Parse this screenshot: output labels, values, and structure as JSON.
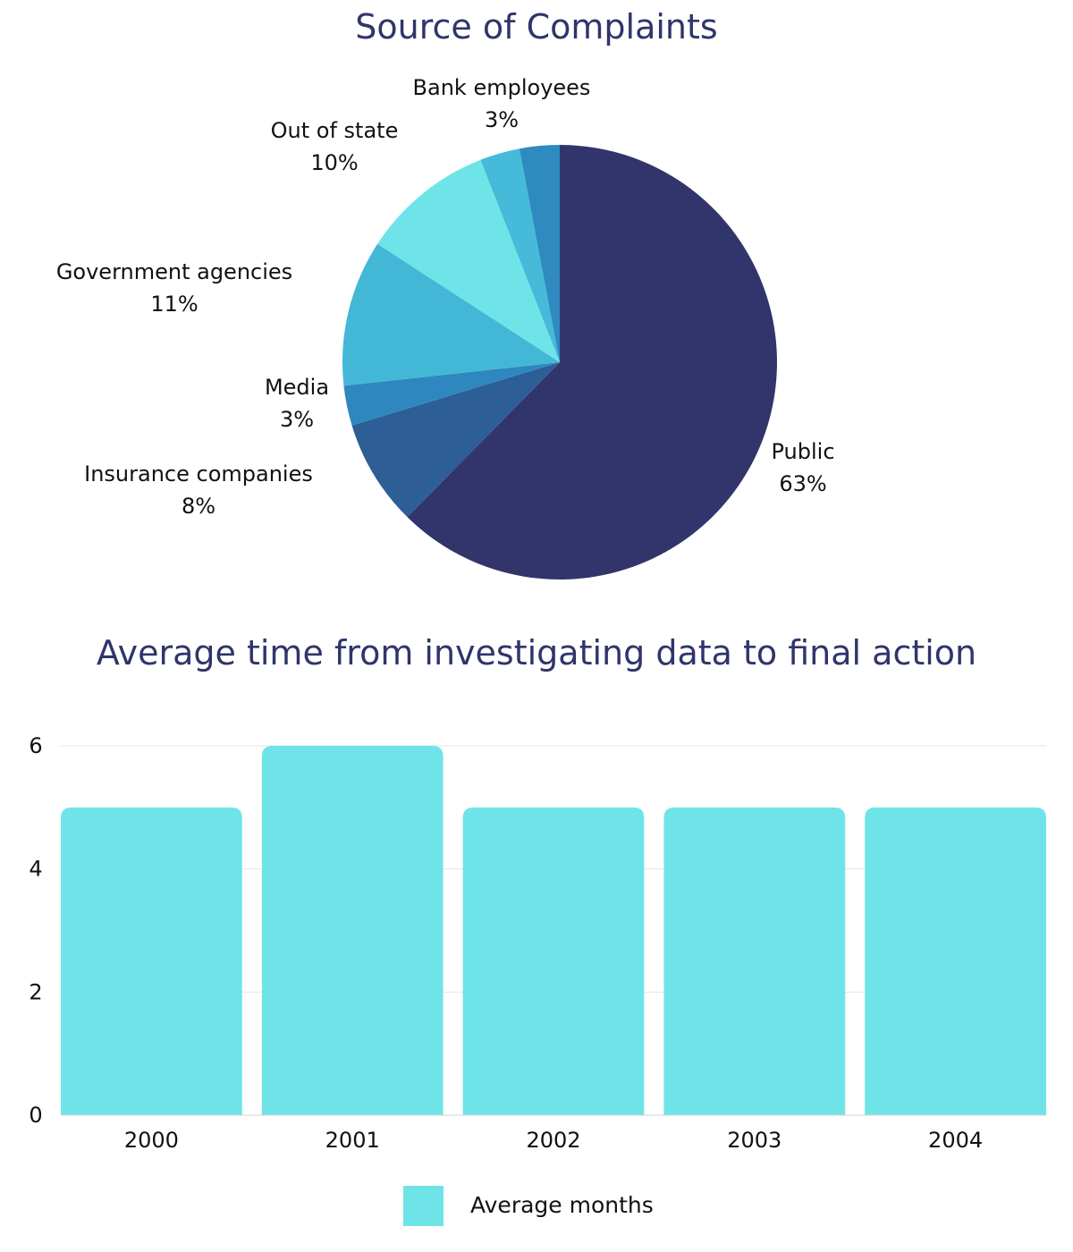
{
  "chart_data": [
    {
      "type": "pie",
      "title": "Source of Complaints",
      "slices": [
        {
          "label": "Public",
          "value": 63,
          "value_label": "63%",
          "color": "#32356b"
        },
        {
          "label": "Insurance companies",
          "value": 8,
          "value_label": "8%",
          "color": "#2d5e95"
        },
        {
          "label": "Media",
          "value": 3,
          "value_label": "3%",
          "color": "#2e88bf"
        },
        {
          "label": "Government agencies",
          "value": 11,
          "value_label": "11%",
          "color": "#43b7d6"
        },
        {
          "label": "Out of state",
          "value": 10,
          "value_label": "10%",
          "color": "#6fe4e8"
        },
        {
          "label": "",
          "value": 3,
          "value_label": "",
          "color": "#45bad9"
        },
        {
          "label": "Bank employees",
          "value": 3,
          "value_label": "3%",
          "color": "#2e8abf"
        }
      ]
    },
    {
      "type": "bar",
      "title": "Average time from investigating data to final action",
      "categories": [
        "2000",
        "2001",
        "2002",
        "2003",
        "2004"
      ],
      "series": [
        {
          "name": "Average months",
          "values": [
            5,
            6,
            5,
            5,
            5
          ],
          "color": "#6fe4e8"
        }
      ],
      "ylim": [
        0,
        6
      ],
      "yticks": [
        0,
        2,
        4,
        6
      ],
      "grid": true,
      "legend": "bottom-center"
    }
  ]
}
